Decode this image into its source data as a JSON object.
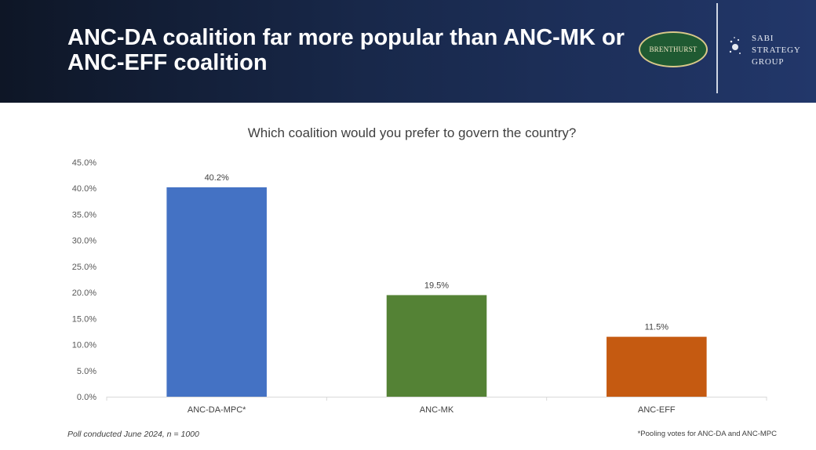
{
  "header": {
    "title_line1": "ANC-DA coalition far more popular than ANC-MK or",
    "title_line2": "ANC-EFF coalition",
    "logo_left_text": "BRENTHURST",
    "logo_right": [
      "SABI",
      "STRATEGY",
      "GROUP"
    ]
  },
  "colors": {
    "header_bg": "#1a2a4e",
    "blue": "#4472c4",
    "green": "#548235",
    "orange": "#c55a11"
  },
  "chart_data": {
    "type": "bar",
    "title": "Which coalition would you prefer to govern the country?",
    "categories": [
      "ANC-DA-MPC*",
      "ANC-MK",
      "ANC-EFF"
    ],
    "values": [
      40.2,
      19.5,
      11.5
    ],
    "value_labels": [
      "40.2%",
      "19.5%",
      "11.5%"
    ],
    "bar_colors": [
      "#4472c4",
      "#548235",
      "#c55a11"
    ],
    "ylim": [
      0,
      45
    ],
    "yticks": [
      0,
      5,
      10,
      15,
      20,
      25,
      30,
      35,
      40,
      45
    ],
    "ytick_labels": [
      "0.0%",
      "5.0%",
      "10.0%",
      "15.0%",
      "20.0%",
      "25.0%",
      "30.0%",
      "35.0%",
      "40.0%",
      "45.0%"
    ],
    "xlabel": "",
    "ylabel": "",
    "grid": false
  },
  "footnotes": {
    "left": "Poll conducted June 2024, n = 1000",
    "right": "*Pooling votes for ANC-DA and ANC-MPC"
  }
}
